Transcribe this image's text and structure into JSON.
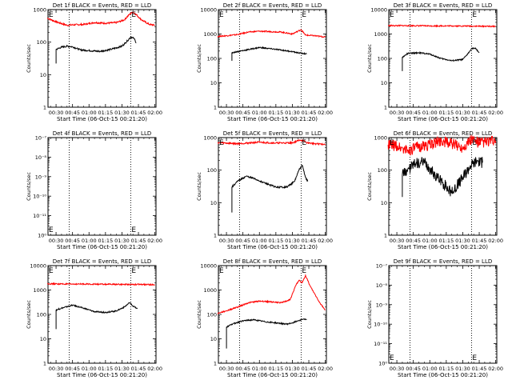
{
  "chart_data": [
    {
      "type": "line",
      "title": "Det 1f BLACK = Events, RED = LLD",
      "xlabel": "Start Time (06-Oct-15 00:21:20)",
      "ylabel": "Counts/sec",
      "x_ticks": [
        "00:30",
        "00:45",
        "01:00",
        "01:15",
        "01:30",
        "01:45",
        "02:00"
      ],
      "y_ticks": [
        "1",
        "10",
        "100",
        "1000"
      ],
      "y_scale": "log",
      "ylim": [
        1,
        1000
      ],
      "markers": [
        "00:42",
        "01:38"
      ],
      "corner_labels": [
        "E",
        "E"
      ],
      "series": [
        {
          "color": "#ff0000",
          "x": [
            "00:22",
            "00:30",
            "00:40",
            "00:45",
            "00:55",
            "01:05",
            "01:15",
            "01:25",
            "01:32",
            "01:37",
            "01:40",
            "01:44",
            "01:48",
            "01:55",
            "02:00"
          ],
          "values": [
            550,
            420,
            330,
            340,
            350,
            400,
            380,
            400,
            480,
            720,
            850,
            650,
            480,
            350,
            330
          ]
        },
        {
          "color": "#000000",
          "x": [
            "00:30",
            "00:30",
            "00:35",
            "00:40",
            "00:45",
            "00:52",
            "01:00",
            "01:10",
            "01:20",
            "01:30",
            "01:35",
            "01:38",
            "01:41",
            "01:43"
          ],
          "values": [
            22,
            60,
            70,
            75,
            72,
            58,
            55,
            52,
            60,
            75,
            110,
            145,
            130,
            95
          ]
        }
      ]
    },
    {
      "type": "line",
      "title": "Det 2f BLACK = Events, RED = LLD",
      "xlabel": "Start Time (06-Oct-15 00:21:20)",
      "ylabel": "Counts/sec",
      "x_ticks": [
        "00:30",
        "00:45",
        "01:00",
        "01:15",
        "01:30",
        "01:45",
        "02:00"
      ],
      "y_ticks": [
        "1",
        "10",
        "100",
        "1000",
        "10000"
      ],
      "y_scale": "log",
      "ylim": [
        1,
        10000
      ],
      "markers": [
        "00:42",
        "01:38"
      ],
      "corner_labels": [
        "E",
        "E"
      ],
      "series": [
        {
          "color": "#ff0000",
          "x": [
            "00:22",
            "00:30",
            "00:40",
            "00:50",
            "01:00",
            "01:10",
            "01:20",
            "01:30",
            "01:35",
            "01:38",
            "01:42",
            "01:50",
            "02:00"
          ],
          "values": [
            800,
            850,
            950,
            1200,
            1300,
            1250,
            1200,
            1000,
            1300,
            1500,
            900,
            850,
            750
          ]
        },
        {
          "color": "#000000",
          "x": [
            "00:35",
            "00:35",
            "00:40",
            "00:50",
            "01:00",
            "01:10",
            "01:20",
            "01:30",
            "01:35",
            "01:40",
            "01:43"
          ],
          "values": [
            80,
            170,
            190,
            230,
            280,
            250,
            220,
            190,
            170,
            160,
            150
          ]
        }
      ]
    },
    {
      "type": "line",
      "title": "Det 3f BLACK = Events, RED = LLD",
      "xlabel": "Start Time (06-Oct-15 00:21:20)",
      "ylabel": "Counts/sec",
      "x_ticks": [
        "00:30",
        "00:45",
        "01:00",
        "01:15",
        "01:30",
        "01:45",
        "02:00"
      ],
      "y_ticks": [
        "1",
        "10",
        "100",
        "1000",
        "10000"
      ],
      "y_scale": "log",
      "ylim": [
        1,
        10000
      ],
      "markers": [
        "00:42",
        "01:38"
      ],
      "corner_labels": [
        "E",
        "E"
      ],
      "series": [
        {
          "color": "#ff0000",
          "x": [
            "00:22",
            "00:40",
            "01:00",
            "01:20",
            "01:40",
            "02:00"
          ],
          "values": [
            2200,
            2200,
            2150,
            2150,
            2100,
            2050
          ]
        },
        {
          "color": "#000000",
          "x": [
            "00:35",
            "00:35",
            "00:40",
            "00:50",
            "01:00",
            "01:10",
            "01:20",
            "01:30",
            "01:35",
            "01:38",
            "01:42",
            "01:45"
          ],
          "values": [
            30,
            110,
            160,
            170,
            150,
            100,
            80,
            90,
            160,
            260,
            250,
            170
          ]
        }
      ]
    },
    {
      "type": "line",
      "title": "Det 4f BLACK = Events, RED = LLD",
      "xlabel": "Start Time (06-Oct-15 00:21:20)",
      "ylabel": "Counts/sec",
      "x_ticks": [
        "00:30",
        "00:45",
        "01:00",
        "01:15",
        "01:30",
        "01:45",
        "02:00"
      ],
      "y_ticks": [
        "10⁰",
        "10⁻¹¹",
        "10⁻¹⁰",
        "10⁻⁹",
        "10⁻⁸",
        "10⁻⁷"
      ],
      "y_scale": "log",
      "markers": [
        "00:42",
        "01:38"
      ],
      "corner_labels": [
        "E",
        "E"
      ],
      "series": []
    },
    {
      "type": "line",
      "title": "Det 5f BLACK = Events, RED = LLD",
      "xlabel": "Start Time (06-Oct-15 00:21:20)",
      "ylabel": "Counts/sec",
      "x_ticks": [
        "00:30",
        "00:45",
        "01:00",
        "01:15",
        "01:30",
        "01:45",
        "02:00"
      ],
      "y_ticks": [
        "1",
        "10",
        "100",
        "1000"
      ],
      "y_scale": "log",
      "ylim": [
        1,
        1000
      ],
      "markers": [
        "00:42",
        "01:38"
      ],
      "corner_labels": [
        "E",
        "E"
      ],
      "series": [
        {
          "color": "#ff0000",
          "x": [
            "00:22",
            "00:40",
            "01:00",
            "01:15",
            "01:30",
            "01:37",
            "01:40",
            "01:43",
            "01:50",
            "02:00"
          ],
          "values": [
            700,
            650,
            720,
            680,
            690,
            850,
            800,
            700,
            650,
            620
          ]
        },
        {
          "color": "#000000",
          "x": [
            "00:35",
            "00:35",
            "00:40",
            "00:48",
            "00:55",
            "01:05",
            "01:15",
            "01:25",
            "01:32",
            "01:36",
            "01:39",
            "01:42",
            "01:44"
          ],
          "values": [
            5,
            30,
            45,
            65,
            55,
            40,
            30,
            30,
            45,
            100,
            140,
            60,
            45
          ]
        }
      ]
    },
    {
      "type": "line",
      "title": "Det 6f BLACK = Events, RED = LLD",
      "xlabel": "Start Time (06-Oct-15 00:21:20)",
      "ylabel": "Counts/sec",
      "x_ticks": [
        "00:30",
        "00:45",
        "01:00",
        "01:15",
        "01:30",
        "01:45",
        "02:00"
      ],
      "y_ticks": [
        "1",
        "10",
        "100",
        "1000"
      ],
      "y_scale": "log",
      "ylim": [
        1,
        1000
      ],
      "markers": [
        "00:42",
        "01:38"
      ],
      "corner_labels": [
        "E",
        "E"
      ],
      "series": [
        {
          "color": "#ff0000",
          "x": [
            "00:22",
            "00:30",
            "00:40",
            "00:50",
            "01:00",
            "01:10",
            "01:20",
            "01:30",
            "01:38",
            "01:45",
            "02:00"
          ],
          "values": [
            600,
            550,
            400,
            520,
            600,
            800,
            650,
            500,
            900,
            700,
            800
          ]
        },
        {
          "color": "#000000",
          "x": [
            "00:35",
            "00:35",
            "00:40",
            "00:48",
            "00:55",
            "01:05",
            "01:12",
            "01:20",
            "01:30",
            "01:37",
            "01:43",
            "01:48"
          ],
          "values": [
            15,
            70,
            110,
            160,
            170,
            70,
            40,
            20,
            60,
            140,
            200,
            170
          ]
        }
      ]
    },
    {
      "type": "line",
      "title": "Det 7f BLACK = Events, RED = LLD",
      "xlabel": "Start Time (06-Oct-15 00:21:20)",
      "ylabel": "Counts/sec",
      "x_ticks": [
        "00:30",
        "00:45",
        "01:00",
        "01:15",
        "01:30",
        "01:45",
        "02:00"
      ],
      "y_ticks": [
        "1",
        "10",
        "100",
        "1000",
        "10000"
      ],
      "y_scale": "log",
      "ylim": [
        1,
        10000
      ],
      "markers": [
        "00:42",
        "01:38"
      ],
      "corner_labels": [
        "E",
        "E"
      ],
      "series": [
        {
          "color": "#ff0000",
          "x": [
            "00:22",
            "00:40",
            "01:00",
            "01:20",
            "01:40",
            "02:00"
          ],
          "values": [
            1800,
            1750,
            1750,
            1700,
            1700,
            1650
          ]
        },
        {
          "color": "#000000",
          "x": [
            "00:30",
            "00:30",
            "00:35",
            "00:45",
            "00:55",
            "01:05",
            "01:15",
            "01:25",
            "01:32",
            "01:37",
            "01:40",
            "01:44"
          ],
          "values": [
            25,
            150,
            180,
            240,
            180,
            130,
            120,
            140,
            200,
            300,
            220,
            170
          ]
        }
      ]
    },
    {
      "type": "line",
      "title": "Det 8f BLACK = Events, RED = LLD",
      "xlabel": "Start Time (06-Oct-15 00:21:20)",
      "ylabel": "Counts/sec",
      "x_ticks": [
        "00:30",
        "00:45",
        "01:00",
        "01:15",
        "01:30",
        "01:45",
        "02:00"
      ],
      "y_ticks": [
        "1",
        "10",
        "100",
        "1000",
        "10000"
      ],
      "y_scale": "log",
      "ylim": [
        1,
        10000
      ],
      "markers": [
        "00:42",
        "01:38"
      ],
      "corner_labels": [
        "E",
        "E"
      ],
      "series": [
        {
          "color": "#ff0000",
          "x": [
            "00:22",
            "00:30",
            "00:40",
            "00:50",
            "01:00",
            "01:10",
            "01:20",
            "01:28",
            "01:33",
            "01:36",
            "01:39",
            "01:42",
            "01:46",
            "01:55",
            "02:00"
          ],
          "values": [
            110,
            140,
            200,
            300,
            350,
            330,
            300,
            400,
            1500,
            2500,
            2000,
            4000,
            1500,
            300,
            150
          ]
        },
        {
          "color": "#000000",
          "x": [
            "00:30",
            "00:30",
            "00:35",
            "00:45",
            "00:55",
            "01:05",
            "01:15",
            "01:25",
            "01:30",
            "01:35",
            "01:40",
            "01:43"
          ],
          "values": [
            4,
            30,
            40,
            55,
            60,
            50,
            45,
            40,
            45,
            55,
            65,
            60
          ]
        }
      ]
    },
    {
      "type": "line",
      "title": "Det 9f BLACK = Events, RED = LLD",
      "xlabel": "Start Time (06-Oct-15 00:21:20)",
      "ylabel": "Counts/sec",
      "x_ticks": [
        "00:30",
        "00:45",
        "01:00",
        "01:15",
        "01:30",
        "01:45",
        "02:00"
      ],
      "y_ticks": [
        "10⁰",
        "10⁻¹¹",
        "10⁻¹⁰",
        "10⁻⁹",
        "10⁻⁸",
        "10⁻⁷"
      ],
      "y_scale": "log",
      "markers": [
        "00:42",
        "01:38"
      ],
      "corner_labels": [
        "E",
        "E"
      ],
      "series": []
    }
  ]
}
